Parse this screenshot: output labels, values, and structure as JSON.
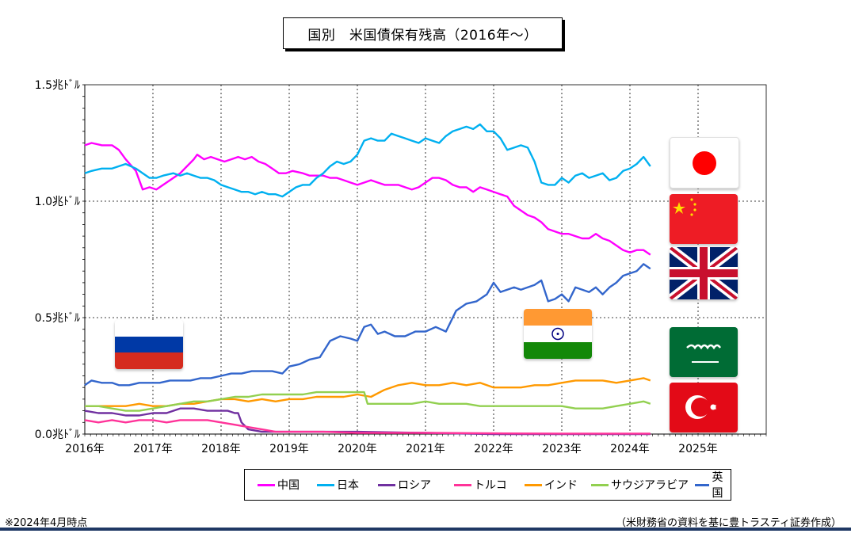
{
  "title": "国別　米国債保有残高（2016年～）",
  "footnote_left": "※2024年4月時点",
  "footnote_right": "（米財務省の資料を基に豊トラスティ証券作成）",
  "colors": {
    "china": "#ff00ff",
    "japan": "#00b0f0",
    "russia": "#7030a0",
    "turkey": "#ff3399",
    "india": "#ff9900",
    "saudi": "#92d050",
    "uk": "#3366cc",
    "bottom_bar": "#1f3864"
  },
  "flag_icons": [
    "japan-flag-icon",
    "china-flag-icon",
    "uk-flag-icon",
    "saudi-flag-icon",
    "turkey-flag-icon",
    "russia-flag-icon",
    "india-flag-icon"
  ],
  "chart_data": {
    "type": "line",
    "title": "国別　米国債保有残高（2016年～）",
    "xlabel": "",
    "ylabel": "",
    "xlim": [
      2016.0,
      2026.0
    ],
    "ylim": [
      0,
      1.5
    ],
    "y_ticks": [
      0,
      0.5,
      1.0,
      1.5
    ],
    "y_tick_labels": [
      "0.0兆ﾄﾞﾙ",
      "0.5兆ﾄﾞﾙ",
      "1.0兆ﾄﾞﾙ",
      "1.5兆ﾄﾞﾙ"
    ],
    "x_ticks": [
      2016,
      2017,
      2018,
      2019,
      2020,
      2021,
      2022,
      2023,
      2024,
      2025
    ],
    "x_tick_labels": [
      "2016年",
      "2017年",
      "2018年",
      "2019年",
      "2020年",
      "2021年",
      "2022年",
      "2023年",
      "2024年",
      "2025年"
    ],
    "grid": "dotted major lines",
    "legend_position": "bottom",
    "series": [
      {
        "name": "中国",
        "color": "#ff00ff",
        "x": [
          2016.0,
          2016.1,
          2016.25,
          2016.4,
          2016.5,
          2016.6,
          2016.75,
          2016.85,
          2016.95,
          2017.05,
          2017.15,
          2017.3,
          2017.4,
          2017.5,
          2017.6,
          2017.65,
          2017.75,
          2017.85,
          2017.95,
          2018.05,
          2018.15,
          2018.25,
          2018.35,
          2018.45,
          2018.55,
          2018.65,
          2018.75,
          2018.85,
          2018.95,
          2019.05,
          2019.2,
          2019.3,
          2019.4,
          2019.5,
          2019.6,
          2019.7,
          2019.8,
          2019.9,
          2020.0,
          2020.1,
          2020.2,
          2020.3,
          2020.4,
          2020.5,
          2020.6,
          2020.7,
          2020.8,
          2020.9,
          2021.0,
          2021.1,
          2021.2,
          2021.3,
          2021.4,
          2021.5,
          2021.6,
          2021.7,
          2021.8,
          2021.9,
          2022.0,
          2022.1,
          2022.2,
          2022.3,
          2022.4,
          2022.5,
          2022.6,
          2022.7,
          2022.8,
          2022.9,
          2023.0,
          2023.1,
          2023.2,
          2023.3,
          2023.4,
          2023.5,
          2023.6,
          2023.7,
          2023.8,
          2023.9,
          2024.0,
          2024.1,
          2024.2,
          2024.3
        ],
        "values": [
          1.24,
          1.25,
          1.24,
          1.24,
          1.22,
          1.18,
          1.13,
          1.05,
          1.06,
          1.05,
          1.07,
          1.1,
          1.12,
          1.15,
          1.18,
          1.2,
          1.18,
          1.19,
          1.18,
          1.17,
          1.18,
          1.19,
          1.18,
          1.19,
          1.17,
          1.16,
          1.14,
          1.12,
          1.12,
          1.13,
          1.12,
          1.11,
          1.11,
          1.11,
          1.1,
          1.1,
          1.09,
          1.08,
          1.07,
          1.08,
          1.09,
          1.08,
          1.07,
          1.07,
          1.07,
          1.06,
          1.05,
          1.06,
          1.08,
          1.1,
          1.1,
          1.09,
          1.07,
          1.06,
          1.06,
          1.04,
          1.06,
          1.05,
          1.04,
          1.03,
          1.02,
          0.98,
          0.96,
          0.94,
          0.93,
          0.91,
          0.88,
          0.87,
          0.86,
          0.86,
          0.85,
          0.84,
          0.84,
          0.86,
          0.84,
          0.83,
          0.81,
          0.79,
          0.78,
          0.79,
          0.79,
          0.77
        ]
      },
      {
        "name": "日本",
        "color": "#00b0f0",
        "x": [
          2016.0,
          2016.1,
          2016.25,
          2016.4,
          2016.5,
          2016.6,
          2016.75,
          2016.85,
          2016.95,
          2017.05,
          2017.15,
          2017.3,
          2017.4,
          2017.5,
          2017.6,
          2017.7,
          2017.8,
          2017.9,
          2018.0,
          2018.1,
          2018.2,
          2018.3,
          2018.4,
          2018.5,
          2018.6,
          2018.7,
          2018.8,
          2018.9,
          2019.0,
          2019.1,
          2019.2,
          2019.3,
          2019.4,
          2019.5,
          2019.6,
          2019.7,
          2019.8,
          2019.9,
          2020.0,
          2020.1,
          2020.2,
          2020.3,
          2020.4,
          2020.5,
          2020.6,
          2020.7,
          2020.8,
          2020.9,
          2021.0,
          2021.1,
          2021.2,
          2021.3,
          2021.4,
          2021.5,
          2021.6,
          2021.7,
          2021.8,
          2021.9,
          2022.0,
          2022.1,
          2022.2,
          2022.3,
          2022.4,
          2022.5,
          2022.6,
          2022.7,
          2022.8,
          2022.9,
          2023.0,
          2023.1,
          2023.2,
          2023.3,
          2023.4,
          2023.5,
          2023.6,
          2023.7,
          2023.8,
          2023.9,
          2024.0,
          2024.1,
          2024.2,
          2024.3
        ],
        "values": [
          1.12,
          1.13,
          1.14,
          1.14,
          1.15,
          1.16,
          1.14,
          1.12,
          1.1,
          1.1,
          1.11,
          1.12,
          1.11,
          1.12,
          1.11,
          1.1,
          1.1,
          1.09,
          1.07,
          1.06,
          1.05,
          1.04,
          1.04,
          1.03,
          1.04,
          1.03,
          1.03,
          1.02,
          1.04,
          1.06,
          1.07,
          1.07,
          1.1,
          1.12,
          1.15,
          1.17,
          1.16,
          1.17,
          1.2,
          1.26,
          1.27,
          1.26,
          1.26,
          1.29,
          1.28,
          1.27,
          1.26,
          1.25,
          1.27,
          1.26,
          1.25,
          1.28,
          1.3,
          1.31,
          1.32,
          1.31,
          1.33,
          1.3,
          1.3,
          1.27,
          1.22,
          1.23,
          1.24,
          1.23,
          1.17,
          1.08,
          1.07,
          1.07,
          1.1,
          1.08,
          1.11,
          1.12,
          1.1,
          1.11,
          1.12,
          1.09,
          1.1,
          1.13,
          1.14,
          1.16,
          1.19,
          1.15
        ]
      },
      {
        "name": "ロシア",
        "color": "#7030a0",
        "x": [
          2016.0,
          2016.2,
          2016.4,
          2016.6,
          2016.8,
          2017.0,
          2017.2,
          2017.4,
          2017.6,
          2017.8,
          2018.0,
          2018.1,
          2018.2,
          2018.25,
          2018.3,
          2018.4,
          2018.6,
          2019.0,
          2020.0,
          2021.0,
          2022.0,
          2023.0,
          2024.0,
          2024.3
        ],
        "values": [
          0.1,
          0.09,
          0.09,
          0.08,
          0.08,
          0.09,
          0.09,
          0.11,
          0.11,
          0.1,
          0.1,
          0.1,
          0.09,
          0.09,
          0.05,
          0.02,
          0.01,
          0.01,
          0.01,
          0.005,
          0.0,
          0.0,
          0.0,
          0.0
        ]
      },
      {
        "name": "トルコ",
        "color": "#ff3399",
        "x": [
          2016.0,
          2016.2,
          2016.4,
          2016.6,
          2016.8,
          2017.0,
          2017.2,
          2017.4,
          2017.6,
          2017.8,
          2018.0,
          2018.2,
          2018.4,
          2018.6,
          2018.8,
          2019.0,
          2019.5,
          2020.0,
          2021.0,
          2022.0,
          2023.0,
          2024.0,
          2024.3
        ],
        "values": [
          0.06,
          0.05,
          0.06,
          0.05,
          0.06,
          0.06,
          0.05,
          0.06,
          0.06,
          0.06,
          0.05,
          0.04,
          0.03,
          0.02,
          0.01,
          0.01,
          0.01,
          0.005,
          0.005,
          0.003,
          0.002,
          0.002,
          0.002
        ]
      },
      {
        "name": "インド",
        "color": "#ff9900",
        "x": [
          2016.0,
          2016.2,
          2016.4,
          2016.6,
          2016.8,
          2017.0,
          2017.2,
          2017.4,
          2017.6,
          2017.8,
          2018.0,
          2018.2,
          2018.4,
          2018.6,
          2018.8,
          2019.0,
          2019.2,
          2019.4,
          2019.6,
          2019.8,
          2020.0,
          2020.2,
          2020.4,
          2020.6,
          2020.8,
          2021.0,
          2021.2,
          2021.4,
          2021.6,
          2021.8,
          2022.0,
          2022.2,
          2022.4,
          2022.6,
          2022.8,
          2023.0,
          2023.2,
          2023.4,
          2023.6,
          2023.8,
          2024.0,
          2024.2,
          2024.3
        ],
        "values": [
          0.12,
          0.12,
          0.12,
          0.12,
          0.13,
          0.12,
          0.12,
          0.13,
          0.13,
          0.14,
          0.15,
          0.15,
          0.14,
          0.15,
          0.14,
          0.15,
          0.15,
          0.16,
          0.16,
          0.16,
          0.17,
          0.16,
          0.19,
          0.21,
          0.22,
          0.21,
          0.21,
          0.22,
          0.21,
          0.22,
          0.2,
          0.2,
          0.2,
          0.21,
          0.21,
          0.22,
          0.23,
          0.23,
          0.23,
          0.22,
          0.23,
          0.24,
          0.23
        ]
      },
      {
        "name": "サウジアラビア",
        "color": "#92d050",
        "x": [
          2016.0,
          2016.2,
          2016.4,
          2016.6,
          2016.8,
          2017.0,
          2017.2,
          2017.4,
          2017.6,
          2017.8,
          2018.0,
          2018.2,
          2018.4,
          2018.6,
          2018.8,
          2019.0,
          2019.2,
          2019.4,
          2019.6,
          2019.8,
          2020.0,
          2020.1,
          2020.15,
          2020.4,
          2020.6,
          2020.8,
          2021.0,
          2021.2,
          2021.4,
          2021.6,
          2021.8,
          2022.0,
          2022.2,
          2022.4,
          2022.6,
          2022.8,
          2023.0,
          2023.2,
          2023.4,
          2023.6,
          2023.8,
          2024.0,
          2024.2,
          2024.3
        ],
        "values": [
          0.12,
          0.12,
          0.11,
          0.1,
          0.1,
          0.11,
          0.12,
          0.13,
          0.14,
          0.14,
          0.15,
          0.16,
          0.16,
          0.17,
          0.17,
          0.17,
          0.17,
          0.18,
          0.18,
          0.18,
          0.18,
          0.18,
          0.13,
          0.13,
          0.13,
          0.13,
          0.14,
          0.13,
          0.13,
          0.13,
          0.12,
          0.12,
          0.12,
          0.12,
          0.12,
          0.12,
          0.12,
          0.11,
          0.11,
          0.11,
          0.12,
          0.13,
          0.14,
          0.13
        ]
      },
      {
        "name": "英国",
        "color": "#3366cc",
        "x": [
          2016.0,
          2016.1,
          2016.25,
          2016.4,
          2016.5,
          2016.65,
          2016.8,
          2016.95,
          2017.1,
          2017.25,
          2017.4,
          2017.55,
          2017.7,
          2017.85,
          2018.0,
          2018.15,
          2018.3,
          2018.45,
          2018.6,
          2018.75,
          2018.9,
          2019.0,
          2019.15,
          2019.3,
          2019.45,
          2019.6,
          2019.75,
          2019.9,
          2020.0,
          2020.1,
          2020.2,
          2020.3,
          2020.4,
          2020.55,
          2020.7,
          2020.85,
          2021.0,
          2021.15,
          2021.3,
          2021.45,
          2021.6,
          2021.75,
          2021.9,
          2022.0,
          2022.1,
          2022.2,
          2022.3,
          2022.4,
          2022.5,
          2022.6,
          2022.7,
          2022.8,
          2022.9,
          2023.0,
          2023.1,
          2023.2,
          2023.3,
          2023.4,
          2023.5,
          2023.6,
          2023.7,
          2023.8,
          2023.9,
          2024.0,
          2024.1,
          2024.2,
          2024.3
        ],
        "values": [
          0.21,
          0.23,
          0.22,
          0.22,
          0.21,
          0.21,
          0.22,
          0.22,
          0.22,
          0.23,
          0.23,
          0.23,
          0.24,
          0.24,
          0.25,
          0.26,
          0.26,
          0.27,
          0.27,
          0.27,
          0.26,
          0.29,
          0.3,
          0.32,
          0.33,
          0.4,
          0.42,
          0.41,
          0.4,
          0.46,
          0.47,
          0.43,
          0.44,
          0.42,
          0.42,
          0.44,
          0.44,
          0.46,
          0.44,
          0.53,
          0.56,
          0.57,
          0.6,
          0.65,
          0.61,
          0.62,
          0.63,
          0.62,
          0.63,
          0.64,
          0.66,
          0.57,
          0.58,
          0.6,
          0.57,
          0.63,
          0.62,
          0.61,
          0.63,
          0.6,
          0.63,
          0.65,
          0.68,
          0.69,
          0.7,
          0.73,
          0.71
        ]
      }
    ]
  }
}
